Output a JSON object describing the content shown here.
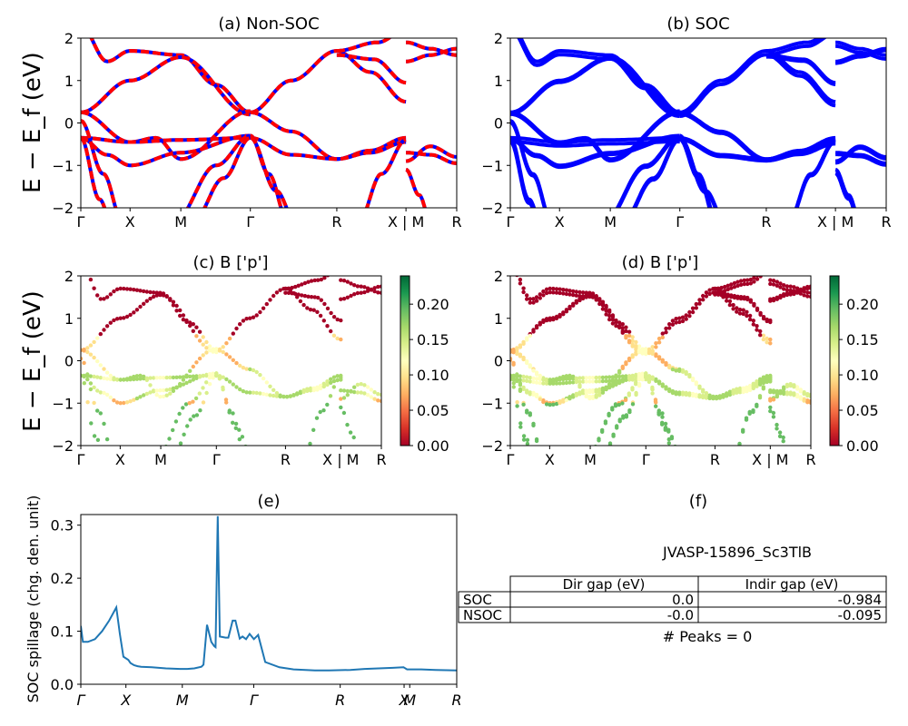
{
  "ylabel_main": "E − E_f (eV)",
  "kpath": [
    "Γ",
    "X",
    "M",
    "Γ",
    "R",
    "X | M",
    "R"
  ],
  "kpath_e": [
    "Γ",
    "X",
    "M",
    "Γ",
    "R",
    "X",
    "M",
    "R"
  ],
  "panels": {
    "a": {
      "title": "(a) Non-SOC"
    },
    "b": {
      "title": "(b) SOC"
    },
    "c": {
      "title": "(c)  B ['p']"
    },
    "d": {
      "title": "(d) B ['p']"
    },
    "e": {
      "title": "(e)"
    },
    "f": {
      "title": "(f)"
    }
  },
  "colorbar": {
    "ticks": [
      "0.00",
      "0.05",
      "0.10",
      "0.15",
      "0.20"
    ]
  },
  "info": {
    "material": "JVASP-15896_Sc3TlB",
    "col_headers": [
      "Dir gap (eV)",
      "Indir gap (eV)"
    ],
    "rows": [
      {
        "label": "SOC",
        "dir": "0.0",
        "indir": "-0.984"
      },
      {
        "label": "NSOC",
        "dir": "-0.0",
        "indir": "-0.095"
      }
    ],
    "peaks": "# Peaks = 0"
  },
  "colors": {
    "soc": "#0000ff",
    "nsoc": "#ff0000",
    "spillage": "#1f77b4"
  },
  "chart_data": [
    {
      "type": "line",
      "title": "(a) Non-SOC",
      "ylabel": "E − E_f (eV)",
      "ylim": [
        -2,
        2
      ],
      "xticklabels": [
        "Γ",
        "X",
        "M",
        "Γ",
        "R",
        "X | M",
        "R"
      ],
      "series": [
        {
          "name": "NSOC",
          "color": "#ff0000",
          "style": "dashed"
        },
        {
          "name": "SOC",
          "color": "#0000ff",
          "style": "solid"
        }
      ]
    },
    {
      "type": "line",
      "title": "(b) SOC",
      "ylim": [
        -2,
        2
      ],
      "xticklabels": [
        "Γ",
        "X",
        "M",
        "Γ",
        "R",
        "X | M",
        "R"
      ],
      "series": [
        {
          "name": "SOC",
          "color": "#0000ff"
        }
      ]
    },
    {
      "type": "scatter",
      "title": "(c)  B ['p']",
      "ylabel": "E − E_f (eV)",
      "ylim": [
        -2,
        2
      ],
      "colorbar_range": [
        0.0,
        0.24
      ],
      "xticklabels": [
        "Γ",
        "X",
        "M",
        "Γ",
        "R",
        "X | M",
        "R"
      ]
    },
    {
      "type": "scatter",
      "title": "(d) B ['p']",
      "ylim": [
        -2,
        2
      ],
      "colorbar_range": [
        0.0,
        0.24
      ],
      "xticklabels": [
        "Γ",
        "X",
        "M",
        "Γ",
        "R",
        "X | M",
        "R"
      ]
    },
    {
      "type": "line",
      "title": "(e)",
      "ylabel": "SOC spillage (chg. den. unit)",
      "ylim": [
        0,
        0.32
      ],
      "yticks": [
        0.0,
        0.1,
        0.2,
        0.3
      ],
      "xticklabels": [
        "Γ",
        "X",
        "M",
        "Γ",
        "R",
        "X",
        "M",
        "R"
      ],
      "series": [
        {
          "x": [
            0,
            0.3,
            1,
            2,
            3,
            4,
            5,
            5.5,
            6,
            6.7,
            7,
            7.5,
            8,
            8.5,
            10,
            12,
            14,
            15,
            16,
            17,
            17.3,
            17.8,
            18.4,
            18.8,
            19.0,
            19.3,
            19.6,
            20.4,
            20.8,
            21.4,
            21.8,
            22.4,
            22.8,
            23.3,
            23.8,
            24.4,
            25,
            26,
            28,
            30,
            33,
            35,
            38,
            40,
            42,
            44,
            45.5,
            46,
            48,
            50,
            53
          ],
          "y": [
            0.11,
            0.08,
            0.08,
            0.085,
            0.1,
            0.12,
            0.145,
            0.095,
            0.052,
            0.046,
            0.04,
            0.036,
            0.034,
            0.033,
            0.032,
            0.03,
            0.029,
            0.029,
            0.03,
            0.033,
            0.037,
            0.112,
            0.08,
            0.072,
            0.07,
            0.317,
            0.09,
            0.088,
            0.088,
            0.12,
            0.12,
            0.086,
            0.09,
            0.085,
            0.095,
            0.085,
            0.093,
            0.042,
            0.032,
            0.028,
            0.026,
            0.026,
            0.027,
            0.029,
            0.03,
            0.031,
            0.032,
            0.028,
            0.028,
            0.027,
            0.026
          ]
        }
      ]
    },
    {
      "type": "table",
      "title": "(f)",
      "columns": [
        "",
        "Dir gap (eV)",
        "Indir gap (eV)"
      ],
      "rows": [
        [
          "SOC",
          "0.0",
          "-0.984"
        ],
        [
          "NSOC",
          "-0.0",
          "-0.095"
        ]
      ]
    }
  ]
}
